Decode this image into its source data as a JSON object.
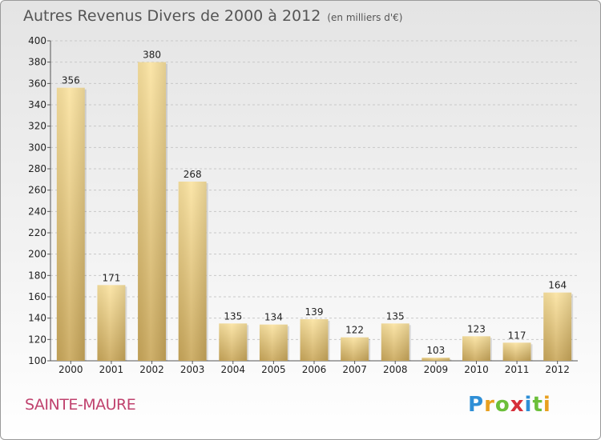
{
  "title": "Autres Revenus Divers de 2000 à 2012",
  "unit": "(en milliers d'€)",
  "location": "SAINTE-MAURE",
  "brand": {
    "letters": [
      "P",
      "r",
      "o",
      "x",
      "i",
      "t",
      "i"
    ],
    "colors": [
      "#2f8fd6",
      "#e8a020",
      "#6bbf3a",
      "#d62f3a",
      "#2f8fd6",
      "#6bbf3a",
      "#e8a020"
    ]
  },
  "colors": {
    "bar_light": "#fbe3a0",
    "bar_dark": "#c9a75a",
    "grid": "#c8c8c8"
  },
  "chart_data": {
    "type": "bar",
    "categories": [
      "2000",
      "2001",
      "2002",
      "2003",
      "2004",
      "2005",
      "2006",
      "2007",
      "2008",
      "2009",
      "2010",
      "2011",
      "2012"
    ],
    "values": [
      356,
      171,
      380,
      268,
      135,
      134,
      139,
      122,
      135,
      103,
      123,
      117,
      164
    ],
    "ylim": [
      100,
      400
    ],
    "yticks": [
      100,
      120,
      140,
      160,
      180,
      200,
      220,
      240,
      260,
      280,
      300,
      320,
      340,
      360,
      380,
      400
    ],
    "grid": true,
    "xlabel": "",
    "ylabel": ""
  }
}
